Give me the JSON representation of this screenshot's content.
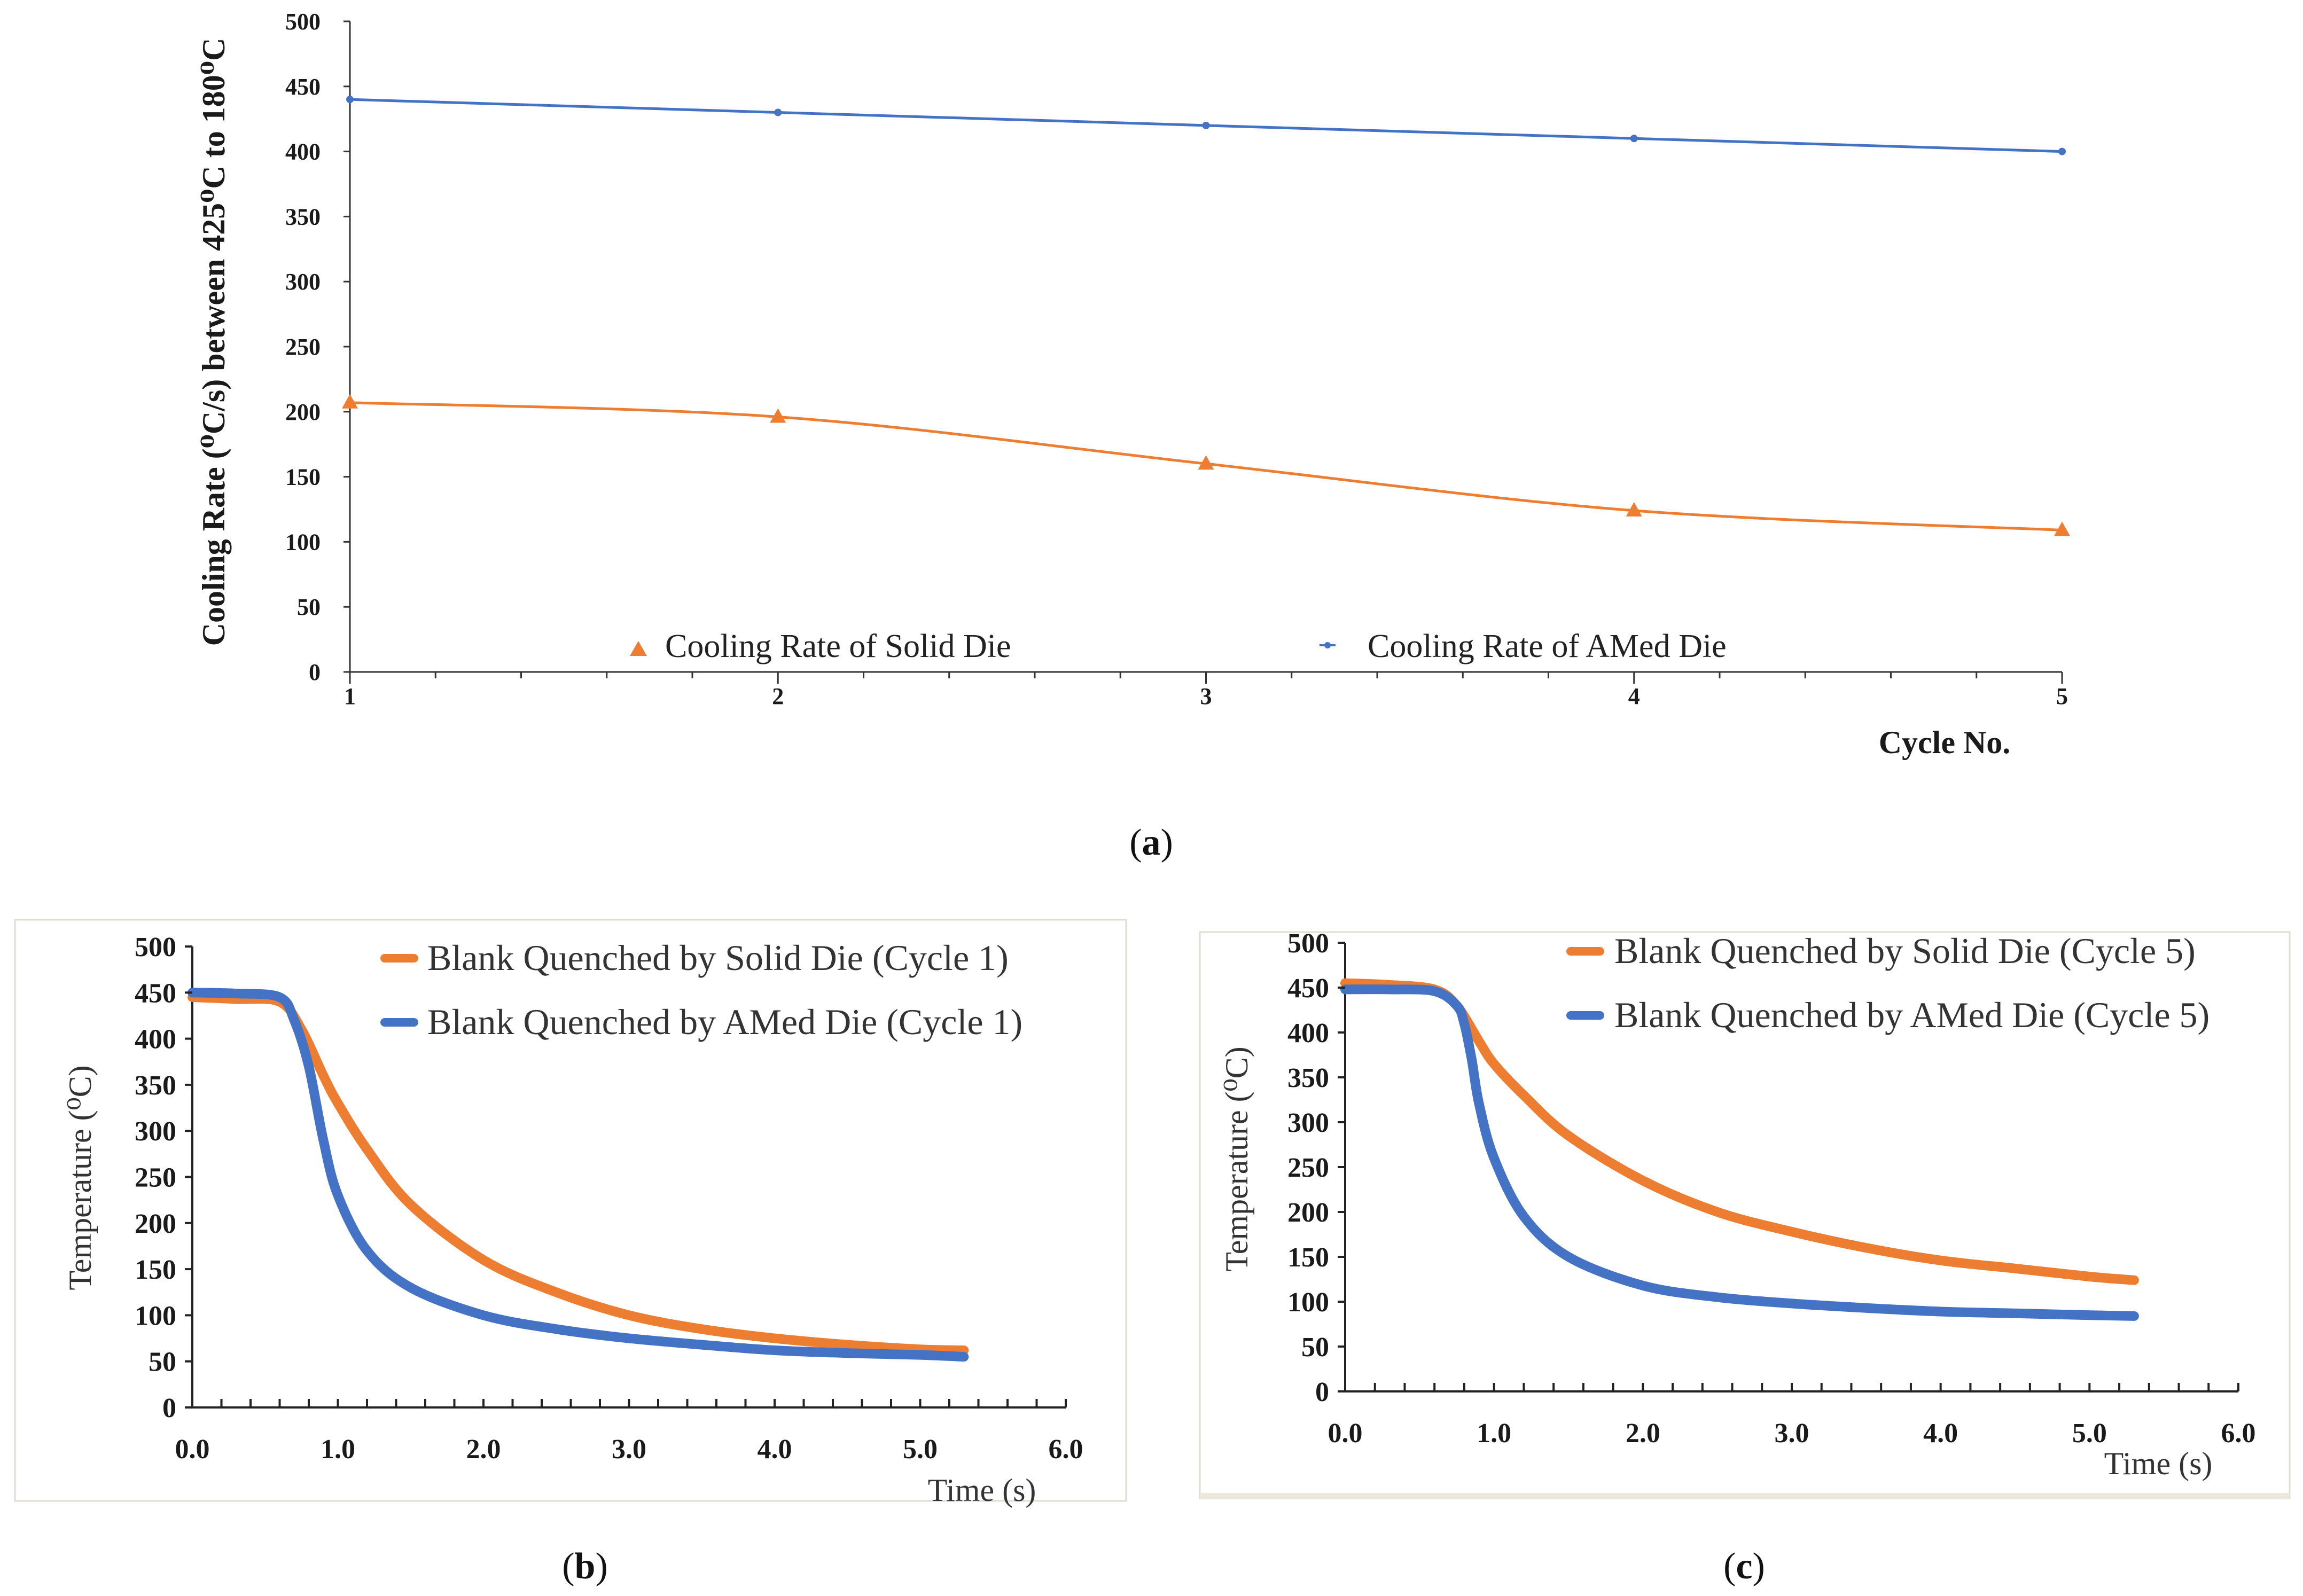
{
  "chart_data": [
    {
      "id": "a",
      "type": "line",
      "caption": "a",
      "xlabel": "Cycle No.",
      "ylabel": "Cooling Rate (⁰C/s) between 425⁰C to 180⁰C",
      "xlim": [
        1,
        5
      ],
      "ylim": [
        0,
        500
      ],
      "xticks": [
        "1",
        "2",
        "3",
        "4",
        "5"
      ],
      "yticks": [
        "0",
        "50",
        "100",
        "150",
        "200",
        "250",
        "300",
        "350",
        "400",
        "450",
        "500"
      ],
      "legend_position": "bottom-inside",
      "series": [
        {
          "name": "Cooling Rate of Solid Die",
          "color": "#ed7d31",
          "marker": "triangle",
          "x": [
            1,
            2,
            3,
            4,
            5
          ],
          "values": [
            207,
            196,
            160,
            124,
            109
          ]
        },
        {
          "name": "Cooling Rate of AMed Die",
          "color": "#4472c4",
          "marker": "dot",
          "x": [
            1,
            2,
            3,
            4,
            5
          ],
          "values": [
            440,
            430,
            420,
            410,
            400
          ]
        }
      ]
    },
    {
      "id": "b",
      "type": "line",
      "caption": "b",
      "xlabel": "Time (s)",
      "ylabel": "Temperature (⁰C)",
      "xlim": [
        0,
        6
      ],
      "ylim": [
        0,
        500
      ],
      "xticks": [
        "0.0",
        "1.0",
        "2.0",
        "3.0",
        "4.0",
        "5.0",
        "6.0"
      ],
      "yticks": [
        "0",
        "50",
        "100",
        "150",
        "200",
        "250",
        "300",
        "350",
        "400",
        "450",
        "500"
      ],
      "legend_position": "top-right",
      "series": [
        {
          "name": "Blank Quenched by Solid Die (Cycle 1)",
          "color": "#ed7d31",
          "x": [
            0,
            0.3,
            0.6,
            0.75,
            0.9,
            1.0,
            1.2,
            1.5,
            2.0,
            2.5,
            3.0,
            3.5,
            4.0,
            4.5,
            5.0,
            5.3
          ],
          "values": [
            445,
            443,
            440,
            410,
            360,
            330,
            280,
            220,
            160,
            125,
            100,
            85,
            75,
            68,
            63,
            62
          ]
        },
        {
          "name": "Blank Quenched by AMed Die (Cycle 1)",
          "color": "#4472c4",
          "x": [
            0,
            0.3,
            0.6,
            0.7,
            0.8,
            0.9,
            1.0,
            1.2,
            1.5,
            2.0,
            2.5,
            3.0,
            3.5,
            4.0,
            4.5,
            5.0,
            5.3
          ],
          "values": [
            450,
            449,
            445,
            420,
            370,
            290,
            230,
            170,
            130,
            100,
            85,
            75,
            68,
            62,
            59,
            57,
            55
          ]
        }
      ]
    },
    {
      "id": "c",
      "type": "line",
      "caption": "c",
      "xlabel": "Time (s)",
      "ylabel": "Temperature (⁰C)",
      "xlim": [
        0,
        6
      ],
      "ylim": [
        0,
        500
      ],
      "xticks": [
        "0.0",
        "1.0",
        "2.0",
        "3.0",
        "4.0",
        "5.0",
        "6.0"
      ],
      "yticks": [
        "0",
        "50",
        "100",
        "150",
        "200",
        "250",
        "300",
        "350",
        "400",
        "450",
        "500"
      ],
      "legend_position": "top-right",
      "series": [
        {
          "name": "Blank Quenched by Solid Die (Cycle 5)",
          "color": "#ed7d31",
          "x": [
            0,
            0.3,
            0.6,
            0.75,
            0.9,
            1.0,
            1.2,
            1.5,
            2.0,
            2.5,
            3.0,
            3.5,
            4.0,
            4.5,
            5.0,
            5.3
          ],
          "values": [
            455,
            453,
            448,
            430,
            390,
            365,
            330,
            285,
            235,
            200,
            178,
            160,
            146,
            137,
            128,
            124
          ]
        },
        {
          "name": "Blank Quenched by AMed Die (Cycle 5)",
          "color": "#4472c4",
          "x": [
            0,
            0.3,
            0.6,
            0.75,
            0.8,
            0.85,
            0.9,
            1.0,
            1.2,
            1.5,
            2.0,
            2.5,
            3.0,
            3.5,
            4.0,
            4.5,
            5.0,
            5.3
          ],
          "values": [
            448,
            448,
            446,
            430,
            410,
            370,
            320,
            260,
            195,
            150,
            118,
            105,
            98,
            93,
            89,
            87,
            85,
            84
          ]
        }
      ]
    }
  ]
}
